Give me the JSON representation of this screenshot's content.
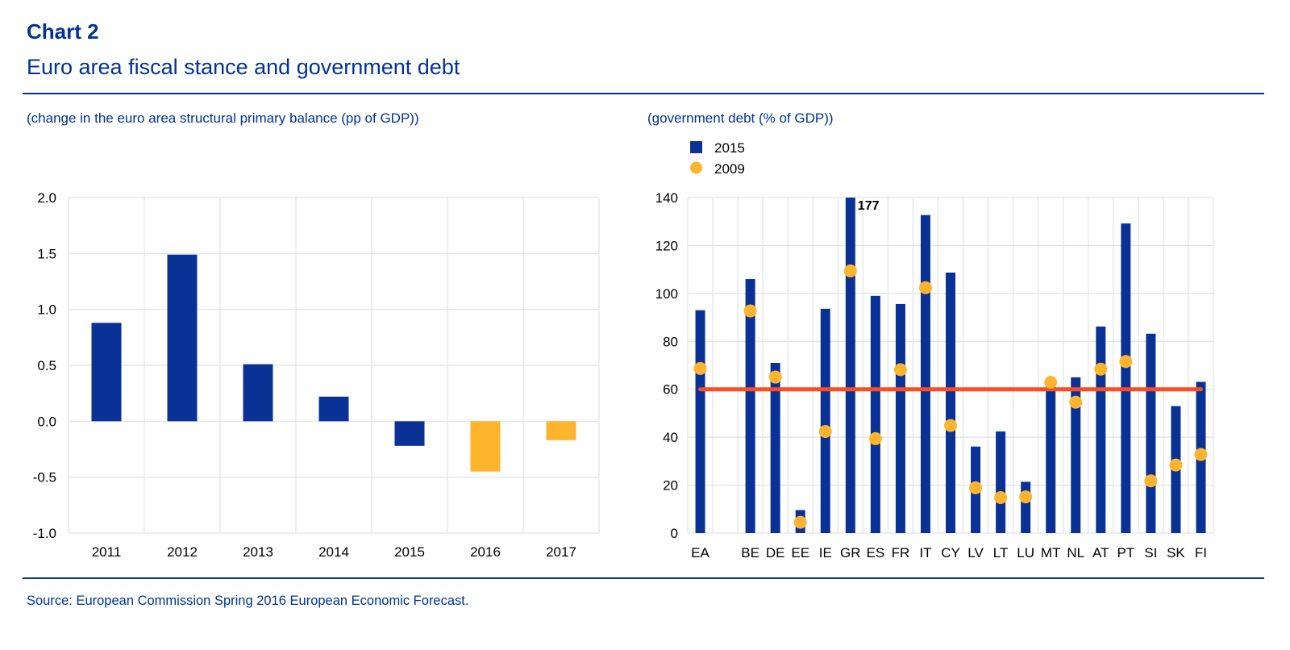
{
  "header": {
    "chart_label": "Chart 2",
    "title": "Euro area fiscal stance and government debt"
  },
  "footer": {
    "source": "Source: European Commission Spring 2016 European Economic Forecast."
  },
  "colors": {
    "brand_blue": "#003299",
    "bar_blue": "#0a3296",
    "forecast_yellow": "#ffb42d",
    "dot_yellow": "#ffb42d",
    "threshold_red": "#ff4b1e",
    "grid": "#e3e3e3"
  },
  "chart_data": [
    {
      "type": "bar",
      "subtitle": "(change in the euro area structural primary balance (pp of GDP))",
      "title": "",
      "xlabel": "",
      "ylabel": "",
      "categories": [
        "2011",
        "2012",
        "2013",
        "2014",
        "2015",
        "2016",
        "2017"
      ],
      "values": [
        0.88,
        1.49,
        0.51,
        0.22,
        -0.22,
        -0.45,
        -0.17
      ],
      "forecast_flags": [
        false,
        false,
        false,
        false,
        false,
        true,
        true
      ],
      "ylim": [
        -1.0,
        2.0
      ],
      "yticks": [
        "2.0",
        "1.5",
        "1.0",
        "0.5",
        "0.0",
        "-0.5",
        "-1.0"
      ],
      "ytick_values": [
        2.0,
        1.5,
        1.0,
        0.5,
        0.0,
        -0.5,
        -1.0
      ],
      "grid": true,
      "legend": null
    },
    {
      "type": "bar",
      "subtitle": "(government debt (% of GDP))",
      "title": "",
      "xlabel": "",
      "ylabel": "",
      "categories": [
        "EA",
        "",
        "BE",
        "DE",
        "EE",
        "IE",
        "GR",
        "ES",
        "FR",
        "IT",
        "CY",
        "LV",
        "LT",
        "LU",
        "MT",
        "NL",
        "AT",
        "PT",
        "SI",
        "SK",
        "FI"
      ],
      "series": [
        {
          "name": "2015",
          "mark": "bar",
          "values": [
            93,
            null,
            106,
            71,
            9.6,
            93.6,
            177,
            99,
            95.6,
            132.7,
            108.7,
            36.1,
            42.4,
            21.4,
            63,
            65,
            86.2,
            129.2,
            83.2,
            53,
            63.1
          ]
        },
        {
          "name": "2009",
          "mark": "dot",
          "values": [
            68.7,
            null,
            92.7,
            65.1,
            4.5,
            42.4,
            109.4,
            39.4,
            68.2,
            102.4,
            44.9,
            18.9,
            14.8,
            15.1,
            62.9,
            54.6,
            68.4,
            71.6,
            21.8,
            28.4,
            32.8
          ]
        }
      ],
      "reference_line": {
        "value": 60,
        "from": "EA",
        "to": "FI"
      },
      "annotations": [
        {
          "category": "GR",
          "text": "177"
        }
      ],
      "ylim": [
        0,
        140
      ],
      "yticks": [
        "140",
        "120",
        "100",
        "80",
        "60",
        "40",
        "20",
        "0"
      ],
      "ytick_values": [
        140,
        120,
        100,
        80,
        60,
        40,
        20,
        0
      ],
      "grid": true,
      "legend": {
        "position": "top-left",
        "entries": [
          "2015",
          "2009"
        ]
      }
    }
  ]
}
